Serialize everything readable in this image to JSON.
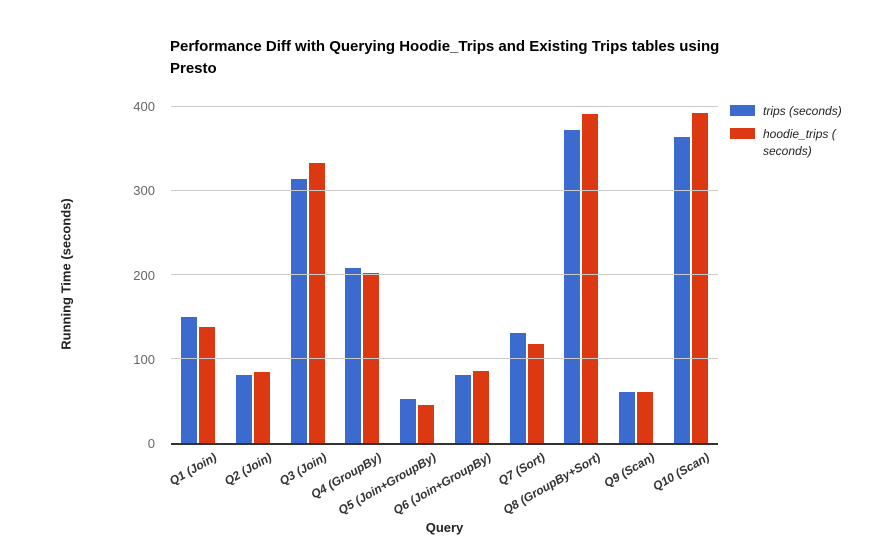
{
  "chart_data": {
    "type": "bar",
    "title": "Performance Diff with Querying Hoodie_Trips and Existing Trips tables using Presto",
    "xlabel": "Query",
    "ylabel": "Running Time (seconds)",
    "ylim": [
      0,
      400
    ],
    "yticks": [
      0,
      100,
      200,
      300,
      400
    ],
    "grid": true,
    "legend_position": "right",
    "background_color": "#FFFFFF",
    "categories": [
      "Q1 (Join)",
      "Q2 (Join)",
      "Q3 (Join)",
      "Q4 (GroupBy)",
      "Q5 (Join+GroupBy)",
      "Q6 (Join+GroupBy)",
      "Q7 (Sort)",
      "Q8 (GroupBy+Sort)",
      "Q9 (Scan)",
      "Q10 (Scan)"
    ],
    "series": [
      {
        "name": "trips (seconds)",
        "color": "#3B6BCE",
        "values": [
          150,
          81,
          313,
          208,
          52,
          81,
          131,
          371,
          61,
          363
        ]
      },
      {
        "name": "hoodie_trips ( seconds)",
        "color": "#DC3912",
        "values": [
          138,
          84,
          332,
          202,
          45,
          85,
          117,
          390,
          60,
          392
        ]
      }
    ]
  }
}
